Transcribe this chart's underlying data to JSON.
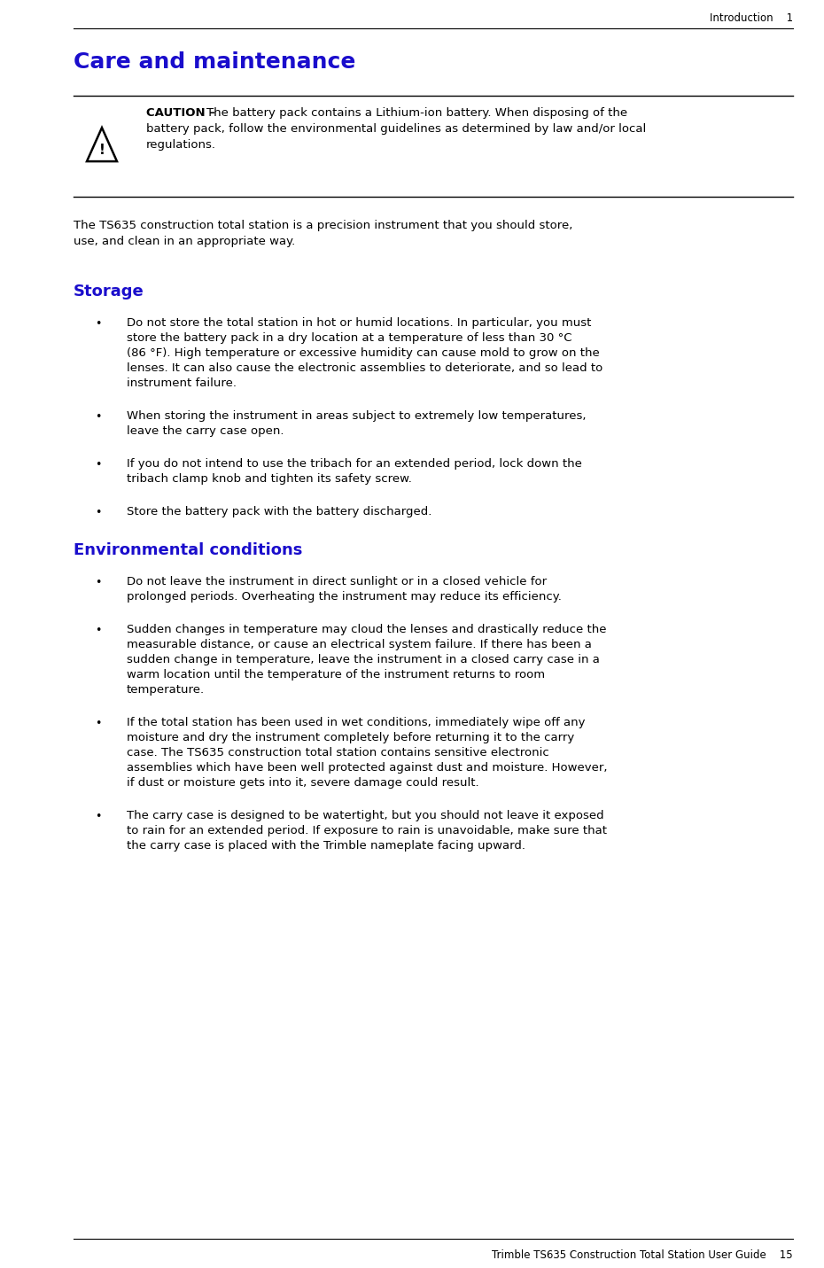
{
  "page_bg": "#ffffff",
  "header_text": "Introduction    1",
  "footer_text": "Trimble TS635 Construction Total Station User Guide    15",
  "title": "Care and maintenance",
  "title_color": "#1a0dcc",
  "caution_bold": "CAUTION –",
  "caution_line1": " The battery pack contains a Lithium-ion battery. When disposing of the",
  "caution_line2": "battery pack, follow the environmental guidelines as determined by law and/or local",
  "caution_line3": "regulations.",
  "intro_line1": "The TS635 construction total station is a precision instrument that you should store,",
  "intro_line2": "use, and clean in an appropriate way.",
  "storage_heading": "Storage",
  "storage_heading_color": "#1a0dcc",
  "storage_bullets": [
    [
      "Do not store the total station in hot or humid locations. In particular, you must",
      "store the battery pack in a dry location at a temperature of less than 30 °C",
      "(86 °F). High temperature or excessive humidity can cause mold to grow on the",
      "lenses. It can also cause the electronic assemblies to deteriorate, and so lead to",
      "instrument failure."
    ],
    [
      "When storing the instrument in areas subject to extremely low temperatures,",
      "leave the carry case open."
    ],
    [
      "If you do not intend to use the tribach for an extended period, lock down the",
      "tribach clamp knob and tighten its safety screw."
    ],
    [
      "Store the battery pack with the battery discharged."
    ]
  ],
  "env_heading": "Environmental conditions",
  "env_heading_color": "#1a0dcc",
  "env_bullets": [
    [
      "Do not leave the instrument in direct sunlight or in a closed vehicle for",
      "prolonged periods. Overheating the instrument may reduce its efficiency."
    ],
    [
      "Sudden changes in temperature may cloud the lenses and drastically reduce the",
      "measurable distance, or cause an electrical system failure. If there has been a",
      "sudden change in temperature, leave the instrument in a closed carry case in a",
      "warm location until the temperature of the instrument returns to room",
      "temperature."
    ],
    [
      "If the total station has been used in wet conditions, immediately wipe off any",
      "moisture and dry the instrument completely before returning it to the carry",
      "case. The TS635 construction total station contains sensitive electronic",
      "assemblies which have been well protected against dust and moisture. However,",
      "if dust or moisture gets into it, severe damage could result."
    ],
    [
      "The carry case is designed to be watertight, but you should not leave it exposed",
      "to rain for an extended period. If exposure to rain is unavoidable, make sure that",
      "the carry case is placed with the Trimble nameplate facing upward."
    ]
  ]
}
